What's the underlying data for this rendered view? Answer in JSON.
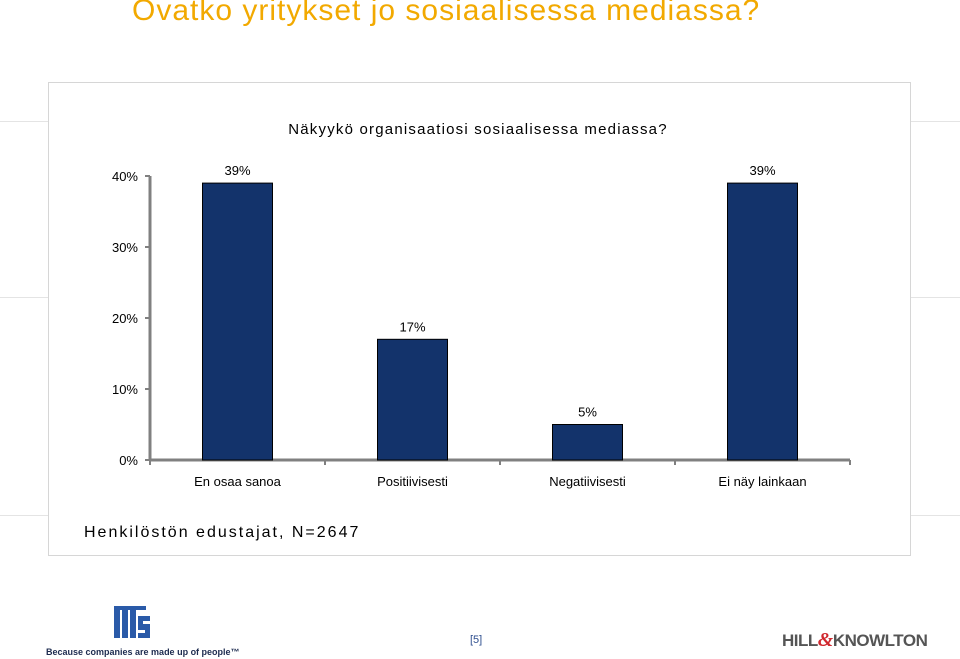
{
  "slide": {
    "title": "Ovatko yritykset jo sosiaalisessa mediassa?",
    "footnote": "Henkilöstön edustajat, N=2647",
    "page_number": "[5]",
    "left_logo": {
      "tagline": "Because companies are made up of people™"
    },
    "right_logo": {
      "part1": "HILL",
      "amp": "&",
      "part2": "KNOWLTON"
    }
  },
  "colors": {
    "title": "#f2a900",
    "bar_fill": "#13336b",
    "bar_stroke": "#000000",
    "axis": "#808080"
  },
  "chart_data": {
    "type": "bar",
    "title": "Näkyykö organisaatiosi sosiaalisessa mediassa?",
    "categories": [
      "En osaa sanoa",
      "Positiivisesti",
      "Negatiivisesti",
      "Ei näy lainkaan"
    ],
    "values": [
      39,
      17,
      5,
      39
    ],
    "value_labels": [
      "39%",
      "17%",
      "5%",
      "39%"
    ],
    "ylim": [
      0,
      40
    ],
    "yticks": [
      0,
      10,
      20,
      30,
      40
    ],
    "ytick_labels": [
      "0%",
      "10%",
      "20%",
      "30%",
      "40%"
    ],
    "xlabel": "",
    "ylabel": "",
    "grid": false,
    "legend": "none"
  }
}
